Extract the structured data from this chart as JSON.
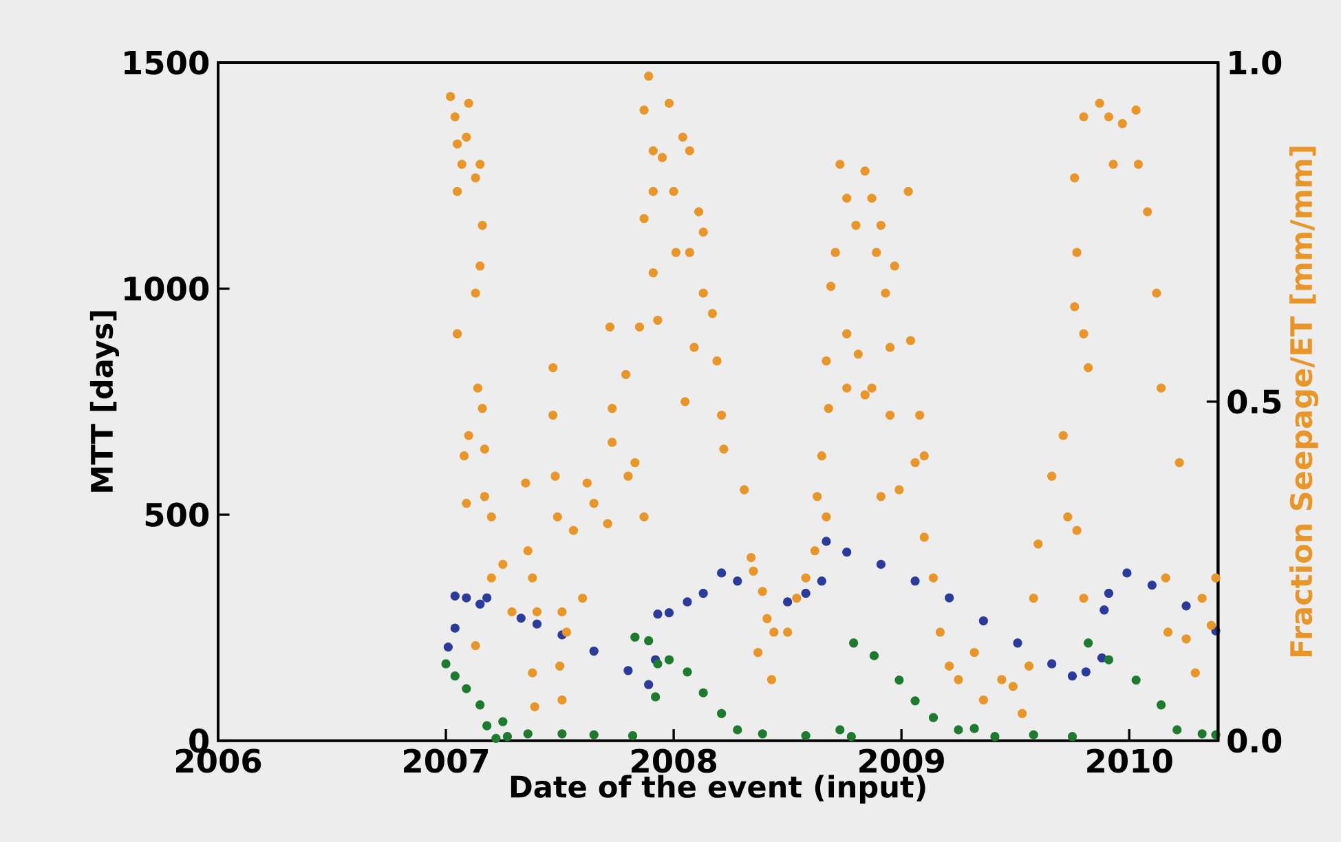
{
  "chart_data": {
    "type": "scatter",
    "xlabel": "Date of the event (input)",
    "ylabel": "MTT [days]",
    "y2label": "Fraction Seepage/ET [mm/mm]",
    "xlim": [
      2006,
      2010.39
    ],
    "xticks": [
      2006,
      2007,
      2008,
      2009,
      2010
    ],
    "ylim": [
      0,
      1500
    ],
    "yticks": [
      0,
      500,
      1000,
      1500
    ],
    "y2lim": [
      0,
      1
    ],
    "y2ticks": [
      {
        "value": 0,
        "label": "0.0"
      },
      {
        "value": 0.5,
        "label": "0.5"
      },
      {
        "value": 1,
        "label": "1.0"
      }
    ],
    "series": [
      {
        "color": "#e8962a",
        "axis": "y2",
        "x": [
          2007.02,
          2007.04,
          2007.05,
          2007.07,
          2007.05,
          2007.1,
          2007.09,
          2007.15,
          2007.13,
          2007.16,
          2007.15,
          2007.13,
          2007.05,
          2007.14,
          2007.16,
          2007.1,
          2007.08,
          2007.09,
          2007.17,
          2007.2,
          2007.17,
          2007.2,
          2007.25,
          2007.13,
          2007.29,
          2007.35,
          2007.36,
          2007.38,
          2007.4,
          2007.38,
          2007.39,
          2007.47,
          2007.47,
          2007.48,
          2007.49,
          2007.51,
          2007.5,
          2007.51,
          2007.53,
          2007.56,
          2007.6,
          2007.62,
          2007.65,
          2007.71,
          2007.72,
          2007.73,
          2007.73,
          2007.79,
          2007.8,
          2007.83,
          2007.85,
          2007.87,
          2007.89,
          2007.87,
          2007.91,
          2007.91,
          2007.87,
          2007.95,
          2008.0,
          2007.98,
          2008.04,
          2008.07,
          2008.11,
          2008.13,
          2008.07,
          2008.01,
          2007.91,
          2007.93,
          2008.05,
          2008.09,
          2008.13,
          2008.17,
          2008.19,
          2008.21,
          2008.22,
          2008.31,
          2008.34,
          2008.35,
          2008.39,
          2008.41,
          2008.37,
          2008.43,
          2008.44,
          2008.5,
          2008.54,
          2008.58,
          2008.62,
          2008.63,
          2008.65,
          2008.67,
          2008.68,
          2008.67,
          2008.69,
          2008.71,
          2008.73,
          2008.76,
          2008.8,
          2008.84,
          2008.87,
          2008.89,
          2008.76,
          2008.76,
          2008.81,
          2008.84,
          2008.87,
          2008.93,
          2008.95,
          2008.91,
          2008.97,
          2009.03,
          2009.04,
          2009.06,
          2009.1,
          2009.08,
          2008.95,
          2008.91,
          2008.99,
          2009.1,
          2009.14,
          2009.17,
          2009.21,
          2009.25,
          2009.32,
          2009.36,
          2009.44,
          2009.49,
          2009.53,
          2009.56,
          2009.58,
          2009.6,
          2009.66,
          2009.71,
          2009.73,
          2009.77,
          2009.8,
          2009.76,
          2009.77,
          2009.76,
          2009.8,
          2009.82,
          2009.8,
          2009.87,
          2009.91,
          2009.93,
          2009.97,
          2010.03,
          2010.04,
          2010.08,
          2010.12,
          2010.14,
          2010.16,
          2010.17,
          2010.22,
          2010.25,
          2010.29,
          2010.32,
          2010.36,
          2010.38
        ],
        "values": [
          0.95,
          0.92,
          0.88,
          0.85,
          0.81,
          0.94,
          0.89,
          0.85,
          0.83,
          0.76,
          0.7,
          0.66,
          0.6,
          0.52,
          0.49,
          0.45,
          0.42,
          0.35,
          0.43,
          0.33,
          0.36,
          0.24,
          0.26,
          0.14,
          0.19,
          0.38,
          0.28,
          0.24,
          0.19,
          0.1,
          0.05,
          0.55,
          0.48,
          0.39,
          0.33,
          0.19,
          0.11,
          0.06,
          0.16,
          0.31,
          0.21,
          0.38,
          0.35,
          0.32,
          0.61,
          0.49,
          0.44,
          0.54,
          0.39,
          0.41,
          0.61,
          0.33,
          0.98,
          0.93,
          0.87,
          0.81,
          0.77,
          0.86,
          0.81,
          0.94,
          0.89,
          0.87,
          0.78,
          0.75,
          0.72,
          0.72,
          0.69,
          0.62,
          0.5,
          0.58,
          0.66,
          0.63,
          0.56,
          0.48,
          0.43,
          0.37,
          0.27,
          0.25,
          0.22,
          0.18,
          0.13,
          0.09,
          0.16,
          0.16,
          0.21,
          0.24,
          0.28,
          0.36,
          0.42,
          0.33,
          0.49,
          0.56,
          0.67,
          0.72,
          0.85,
          0.8,
          0.76,
          0.84,
          0.8,
          0.72,
          0.6,
          0.52,
          0.57,
          0.51,
          0.52,
          0.66,
          0.58,
          0.76,
          0.7,
          0.81,
          0.59,
          0.41,
          0.42,
          0.48,
          0.48,
          0.36,
          0.37,
          0.3,
          0.24,
          0.16,
          0.11,
          0.09,
          0.13,
          0.06,
          0.09,
          0.08,
          0.04,
          0.11,
          0.21,
          0.29,
          0.39,
          0.45,
          0.33,
          0.31,
          0.21,
          0.83,
          0.72,
          0.64,
          0.6,
          0.55,
          0.92,
          0.94,
          0.92,
          0.85,
          0.91,
          0.93,
          0.85,
          0.78,
          0.66,
          0.52,
          0.24,
          0.16,
          0.41,
          0.15,
          0.1,
          0.21,
          0.17,
          0.24
        ]
      },
      {
        "color": "#2b3b9c",
        "x": [
          2007.01,
          2007.04,
          2007.04,
          2007.09,
          2007.15,
          2007.18,
          2007.33,
          2007.4,
          2007.51,
          2007.65,
          2007.8,
          2007.89,
          2007.92,
          2007.93,
          2007.98,
          2008.06,
          2008.13,
          2008.21,
          2008.28,
          2008.5,
          2008.58,
          2008.65,
          2008.67,
          2008.76,
          2008.91,
          2009.06,
          2009.21,
          2009.36,
          2009.51,
          2009.66,
          2009.75,
          2009.81,
          2009.88,
          2009.89,
          2009.91,
          2009.99,
          2010.1,
          2010.25,
          2010.38
        ],
        "values": [
          207,
          249,
          320,
          316,
          302,
          316,
          271,
          258,
          234,
          198,
          155,
          124,
          179,
          280,
          283,
          307,
          326,
          371,
          353,
          307,
          326,
          353,
          441,
          417,
          390,
          353,
          316,
          265,
          216,
          170,
          143,
          152,
          183,
          289,
          326,
          371,
          344,
          298,
          243
        ]
      },
      {
        "color": "#1e7a2e",
        "x": [
          2007.0,
          2007.04,
          2007.09,
          2007.15,
          2007.18,
          2007.22,
          2007.25,
          2007.27,
          2007.36,
          2007.51,
          2007.65,
          2007.82,
          2007.83,
          2007.89,
          2007.92,
          2007.93,
          2007.98,
          2008.06,
          2008.13,
          2008.21,
          2008.28,
          2008.39,
          2008.58,
          2008.73,
          2008.78,
          2008.79,
          2008.88,
          2008.99,
          2009.06,
          2009.14,
          2009.25,
          2009.32,
          2009.41,
          2009.58,
          2009.75,
          2009.82,
          2009.91,
          2010.03,
          2010.14,
          2010.21,
          2010.32,
          2010.38
        ],
        "values": [
          170,
          143,
          115,
          79,
          33,
          5,
          42,
          9,
          15,
          15,
          13,
          11,
          229,
          221,
          97,
          170,
          179,
          152,
          106,
          60,
          24,
          15,
          11,
          24,
          9,
          216,
          188,
          134,
          88,
          51,
          24,
          27,
          9,
          13,
          9,
          216,
          179,
          134,
          79,
          24,
          15,
          13
        ]
      }
    ]
  }
}
